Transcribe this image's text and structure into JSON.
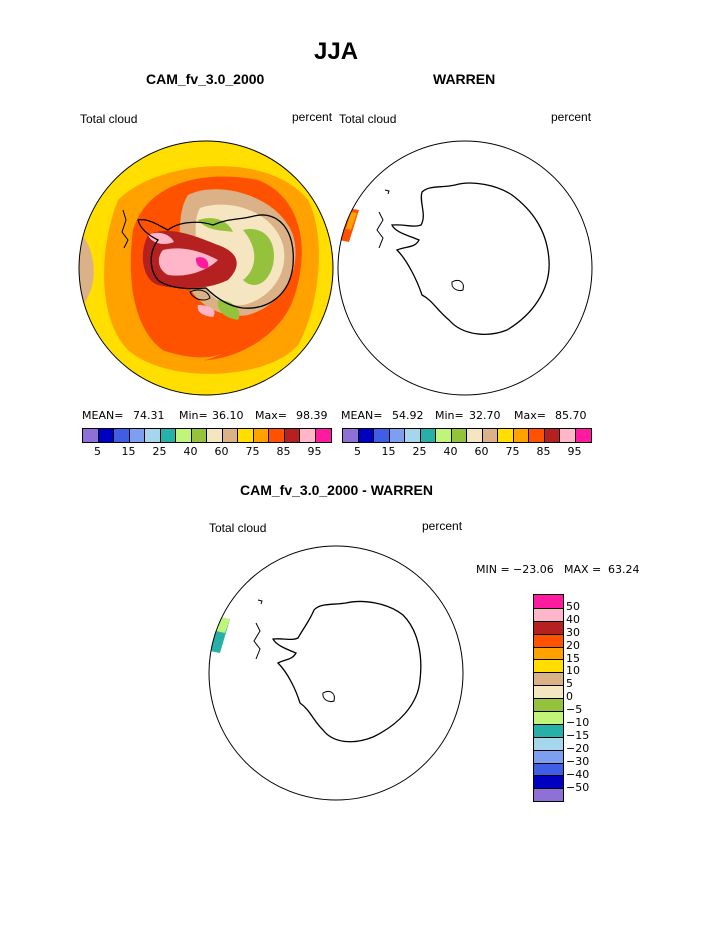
{
  "page_title": "JJA",
  "colors": {
    "cloud": [
      "#8f70d7",
      "#0000c0",
      "#3f5ee3",
      "#7e9ff0",
      "#a5d6eb",
      "#26b0a8",
      "#c0f57a",
      "#94c23c",
      "#f5e5c1",
      "#dbb287",
      "#ffde00",
      "#ffa200",
      "#ff5200",
      "#b52020",
      "#ffb6c8",
      "#ff1aa0"
    ],
    "diff": [
      "#8f70d7",
      "#0000c0",
      "#3f5ee3",
      "#7e9ff0",
      "#a5d6eb",
      "#26b0a8",
      "#c0f57a",
      "#94c23c",
      "#f5e5c1",
      "#dbb287",
      "#ffde00",
      "#ffa200",
      "#ff5200",
      "#b52020",
      "#ffb6c8",
      "#ff1aa0"
    ]
  },
  "panel1": {
    "title": "CAM_fv_3.0_2000",
    "variable": "Total cloud",
    "units": "percent",
    "mean_label": "MEAN=",
    "mean": "74.31",
    "min_label": "Min=",
    "min": "36.10",
    "max_label": "Max=",
    "max": "98.39",
    "cbar_ticks": [
      "5",
      "15",
      "25",
      "40",
      "60",
      "75",
      "85",
      "95"
    ]
  },
  "panel2": {
    "title": "WARREN",
    "variable": "Total cloud",
    "units": "percent",
    "mean_label": "MEAN=",
    "mean": "54.92",
    "min_label": "Min=",
    "min": "32.70",
    "max_label": "Max=",
    "max": "85.70",
    "cbar_ticks": [
      "5",
      "15",
      "25",
      "40",
      "60",
      "75",
      "85",
      "95"
    ]
  },
  "panel3": {
    "title": "CAM_fv_3.0_2000 - WARREN",
    "variable": "Total cloud",
    "units": "percent",
    "min_label": "MIN =",
    "min": "−23.06",
    "max_label": "MAX =",
    "max": "63.24",
    "cbar_ticks": [
      "50",
      "40",
      "30",
      "20",
      "15",
      "10",
      "5",
      "0",
      "−5",
      "−10",
      "−15",
      "−20",
      "−30",
      "−40",
      "−50"
    ]
  }
}
